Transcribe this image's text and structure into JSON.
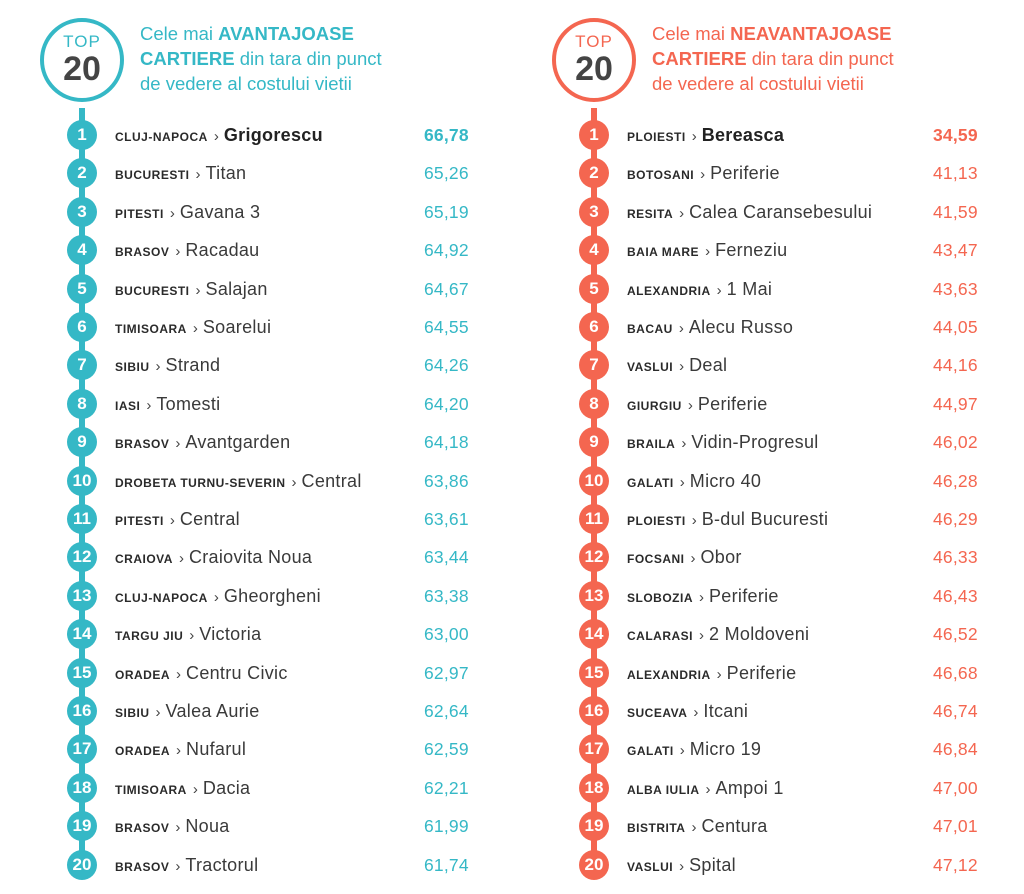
{
  "left": {
    "badge": {
      "top": "TOP",
      "number": "20"
    },
    "heading": {
      "pre": "Cele mai ",
      "bold1": "AVANTAJOASE",
      "bold2": "CARTIERE",
      "rest1": " din tara din punct",
      "rest2": "de vedere al costului vietii"
    },
    "accent_color": "#35b8c6",
    "rows": [
      {
        "rank": "1",
        "city": "CLUJ-NAPOCA",
        "neighborhood": "Grigorescu",
        "value": "66,78"
      },
      {
        "rank": "2",
        "city": "BUCURESTI",
        "neighborhood": "Titan",
        "value": "65,26"
      },
      {
        "rank": "3",
        "city": "PITESTI",
        "neighborhood": "Gavana 3",
        "value": "65,19"
      },
      {
        "rank": "4",
        "city": "BRASOV",
        "neighborhood": "Racadau",
        "value": "64,92"
      },
      {
        "rank": "5",
        "city": "BUCURESTI",
        "neighborhood": "Salajan",
        "value": "64,67"
      },
      {
        "rank": "6",
        "city": "TIMISOARA",
        "neighborhood": "Soarelui",
        "value": "64,55"
      },
      {
        "rank": "7",
        "city": "SIBIU",
        "neighborhood": "Strand",
        "value": "64,26"
      },
      {
        "rank": "8",
        "city": "IASI",
        "neighborhood": "Tomesti",
        "value": "64,20"
      },
      {
        "rank": "9",
        "city": "BRASOV",
        "neighborhood": "Avantgarden",
        "value": "64,18"
      },
      {
        "rank": "10",
        "city": "DROBETA TURNU-SEVERIN",
        "neighborhood": "Central",
        "value": "63,86"
      },
      {
        "rank": "11",
        "city": "PITESTI",
        "neighborhood": "Central",
        "value": "63,61"
      },
      {
        "rank": "12",
        "city": "CRAIOVA",
        "neighborhood": "Craiovita Noua",
        "value": "63,44"
      },
      {
        "rank": "13",
        "city": "CLUJ-NAPOCA",
        "neighborhood": "Gheorgheni",
        "value": "63,38"
      },
      {
        "rank": "14",
        "city": "TARGU JIU",
        "neighborhood": "Victoria",
        "value": "63,00"
      },
      {
        "rank": "15",
        "city": "ORADEA",
        "neighborhood": "Centru Civic",
        "value": "62,97"
      },
      {
        "rank": "16",
        "city": "SIBIU",
        "neighborhood": "Valea Aurie",
        "value": "62,64"
      },
      {
        "rank": "17",
        "city": "ORADEA",
        "neighborhood": "Nufarul",
        "value": "62,59"
      },
      {
        "rank": "18",
        "city": "TIMISOARA",
        "neighborhood": "Dacia",
        "value": "62,21"
      },
      {
        "rank": "19",
        "city": "BRASOV",
        "neighborhood": "Noua",
        "value": "61,99"
      },
      {
        "rank": "20",
        "city": "BRASOV",
        "neighborhood": "Tractorul",
        "value": "61,74"
      }
    ]
  },
  "right": {
    "badge": {
      "top": "TOP",
      "number": "20"
    },
    "heading": {
      "pre": "Cele mai ",
      "bold1": "NEAVANTAJOASE",
      "bold2": "CARTIERE",
      "rest1": " din tara din punct",
      "rest2": "de vedere al costului vietii"
    },
    "accent_color": "#f46650",
    "rows": [
      {
        "rank": "1",
        "city": "PLOIESTI",
        "neighborhood": "Bereasca",
        "value": "34,59"
      },
      {
        "rank": "2",
        "city": "BOTOSANI",
        "neighborhood": "Periferie",
        "value": "41,13"
      },
      {
        "rank": "3",
        "city": "RESITA",
        "neighborhood": "Calea Caransebesului",
        "value": "41,59"
      },
      {
        "rank": "4",
        "city": "BAIA MARE",
        "neighborhood": "Ferneziu",
        "value": "43,47"
      },
      {
        "rank": "5",
        "city": "ALEXANDRIA",
        "neighborhood": "1 Mai",
        "value": "43,63"
      },
      {
        "rank": "6",
        "city": "BACAU",
        "neighborhood": "Alecu Russo",
        "value": "44,05"
      },
      {
        "rank": "7",
        "city": "VASLUI",
        "neighborhood": "Deal",
        "value": "44,16"
      },
      {
        "rank": "8",
        "city": "GIURGIU",
        "neighborhood": "Periferie",
        "value": "44,97"
      },
      {
        "rank": "9",
        "city": "BRAILA",
        "neighborhood": "Vidin-Progresul",
        "value": "46,02"
      },
      {
        "rank": "10",
        "city": "GALATI",
        "neighborhood": "Micro 40",
        "value": "46,28"
      },
      {
        "rank": "11",
        "city": "PLOIESTI",
        "neighborhood": "B-dul Bucuresti",
        "value": "46,29"
      },
      {
        "rank": "12",
        "city": "FOCSANI",
        "neighborhood": "Obor",
        "value": "46,33"
      },
      {
        "rank": "13",
        "city": "SLOBOZIA",
        "neighborhood": "Periferie",
        "value": "46,43"
      },
      {
        "rank": "14",
        "city": "CALARASI",
        "neighborhood": "2 Moldoveni",
        "value": "46,52"
      },
      {
        "rank": "15",
        "city": "ALEXANDRIA",
        "neighborhood": "Periferie",
        "value": "46,68"
      },
      {
        "rank": "16",
        "city": "SUCEAVA",
        "neighborhood": "Itcani",
        "value": "46,74"
      },
      {
        "rank": "17",
        "city": "GALATI",
        "neighborhood": "Micro 19",
        "value": "46,84"
      },
      {
        "rank": "18",
        "city": "ALBA IULIA",
        "neighborhood": "Ampoi 1",
        "value": "47,00"
      },
      {
        "rank": "19",
        "city": "BISTRITA",
        "neighborhood": "Centura",
        "value": "47,01"
      },
      {
        "rank": "20",
        "city": "VASLUI",
        "neighborhood": "Spital",
        "value": "47,12"
      }
    ]
  },
  "separator_glyph": "›"
}
